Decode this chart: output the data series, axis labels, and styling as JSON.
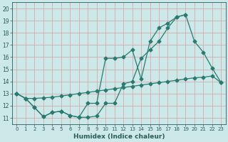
{
  "xlabel": "Humidex (Indice chaleur)",
  "bg_color": "#cce8e8",
  "grid_color": "#b0d0d0",
  "line_color": "#2a7a70",
  "xlim": [
    -0.5,
    23.5
  ],
  "ylim": [
    10.5,
    20.5
  ],
  "xticks": [
    0,
    1,
    2,
    3,
    4,
    5,
    6,
    7,
    8,
    9,
    10,
    11,
    12,
    13,
    14,
    15,
    16,
    17,
    18,
    19,
    20,
    21,
    22,
    23
  ],
  "yticks": [
    11,
    12,
    13,
    14,
    15,
    16,
    17,
    18,
    19,
    20
  ],
  "line_upper_x": [
    0,
    1,
    2,
    3,
    4,
    5,
    6,
    7,
    8,
    9,
    10,
    11,
    12,
    13,
    14,
    15,
    16,
    17,
    18,
    19
  ],
  "line_upper_y": [
    13.0,
    12.6,
    11.85,
    11.1,
    11.45,
    11.55,
    11.2,
    11.05,
    11.05,
    11.15,
    12.2,
    12.2,
    13.8,
    14.0,
    15.9,
    16.6,
    17.3,
    18.4,
    19.3,
    19.5
  ],
  "line_peak_x": [
    0,
    1,
    2,
    3,
    4,
    5,
    6,
    7,
    8,
    9,
    10,
    11,
    12,
    13,
    14,
    15,
    16,
    17,
    18,
    19,
    20,
    21,
    22,
    23
  ],
  "line_peak_y": [
    13.0,
    12.6,
    11.85,
    11.1,
    11.45,
    11.55,
    11.2,
    11.05,
    12.2,
    12.2,
    15.9,
    15.9,
    16.0,
    16.6,
    14.2,
    17.3,
    18.4,
    18.8,
    19.3,
    19.5,
    17.3,
    16.4,
    15.1,
    13.9
  ],
  "line_lower_x": [
    0,
    1,
    2,
    3,
    4,
    5,
    6,
    7,
    8,
    9,
    10,
    11,
    12,
    13,
    14,
    15,
    16,
    17,
    18,
    19,
    20,
    21,
    22,
    23
  ],
  "line_lower_y": [
    13.0,
    12.6,
    12.6,
    12.65,
    12.7,
    12.8,
    12.9,
    13.0,
    13.1,
    13.2,
    13.3,
    13.4,
    13.5,
    13.6,
    13.7,
    13.8,
    13.9,
    14.0,
    14.1,
    14.2,
    14.3,
    14.35,
    14.45,
    13.9
  ]
}
